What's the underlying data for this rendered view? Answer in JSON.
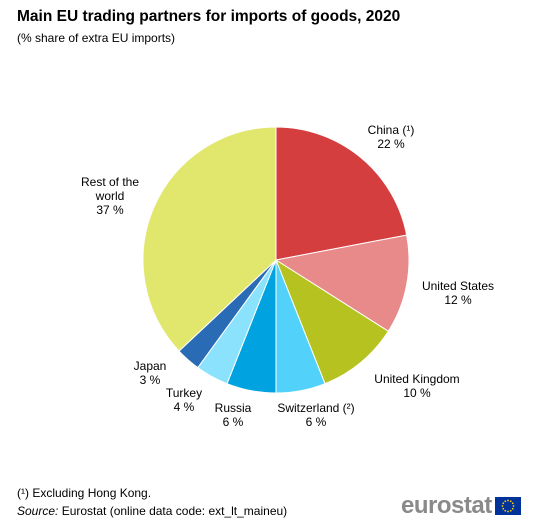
{
  "header": {
    "title": "Main EU trading partners for imports of goods, 2020",
    "subtitle": "(% share of extra EU imports)"
  },
  "chart_data": {
    "type": "pie",
    "title": "Main EU trading partners for imports of goods, 2020",
    "subtitle": "(% share of extra EU imports)",
    "slices": [
      {
        "name": "China (¹)",
        "value": 22,
        "value_label": "22 %",
        "color": "#d53e3e"
      },
      {
        "name": "United States",
        "value": 12,
        "value_label": "12 %",
        "color": "#e88a8a"
      },
      {
        "name": "United Kingdom",
        "value": 10,
        "value_label": "10 %",
        "color": "#b6c21f"
      },
      {
        "name": "Switzerland (²)",
        "value": 6,
        "value_label": "6 %",
        "color": "#52d2fa"
      },
      {
        "name": "Russia",
        "value": 6,
        "value_label": "6 %",
        "color": "#00a3e0"
      },
      {
        "name": "Turkey",
        "value": 4,
        "value_label": "4 %",
        "color": "#8be2fc"
      },
      {
        "name": "Japan",
        "value": 3,
        "value_label": "3 %",
        "color": "#2a6bb5"
      },
      {
        "name": "Rest of the world",
        "value": 37,
        "value_label": "37 %",
        "color": "#e1e76c"
      }
    ]
  },
  "footer": {
    "footnote": "(¹) Excluding Hong Kong.",
    "source_prefix": "Source:",
    "source_text": " Eurostat (online data code: ext_lt_maineu)",
    "logo_text": "eurostat"
  },
  "colors": {
    "flag_blue": "#003399",
    "flag_stars": "#ffcc00"
  }
}
